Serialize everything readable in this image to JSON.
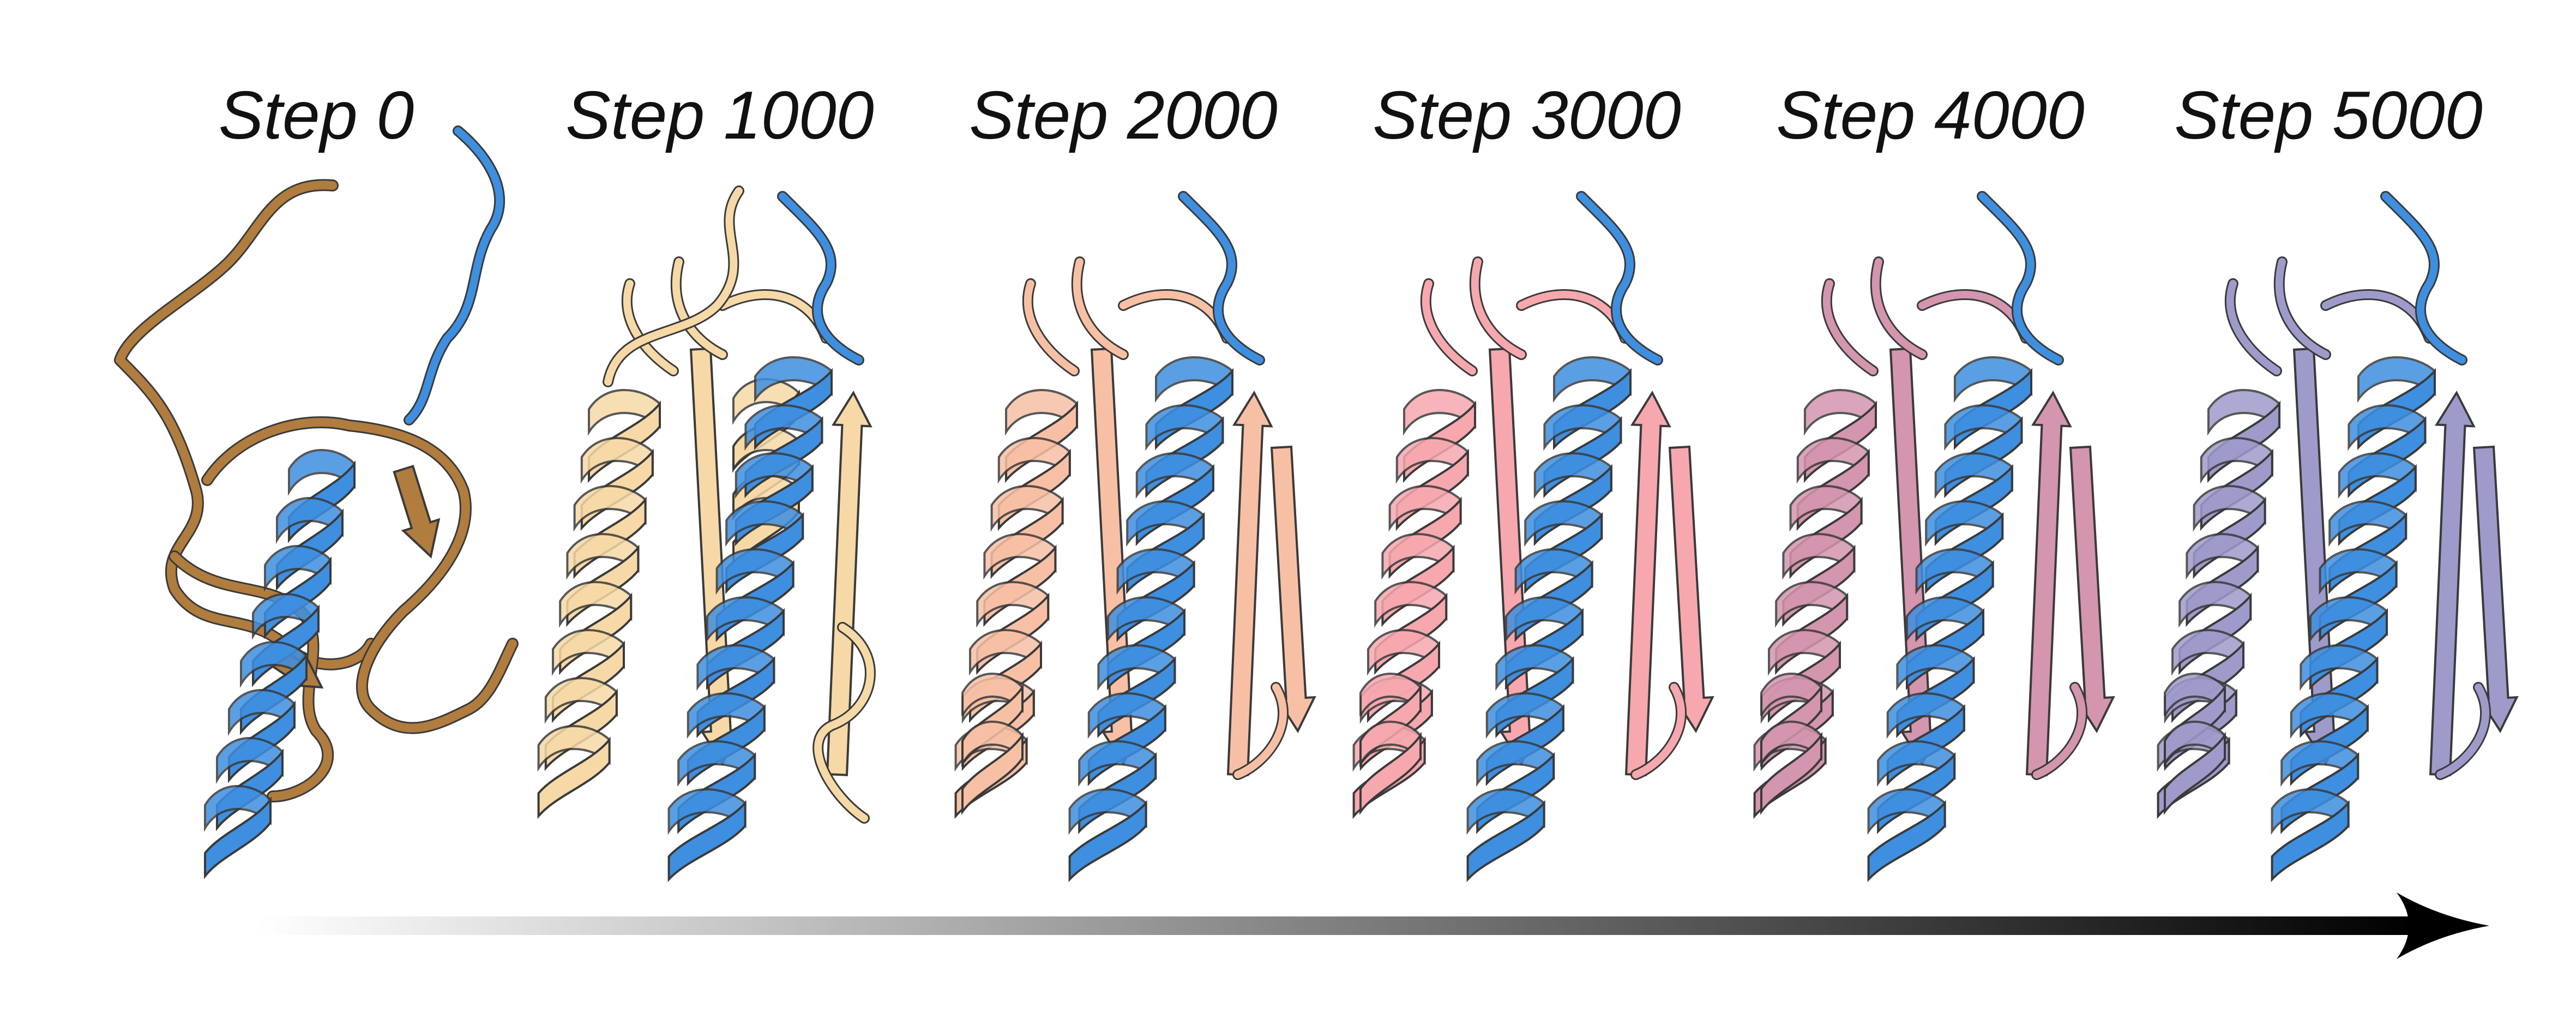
{
  "steps": [
    {
      "label": "Step 0",
      "color": "#B07D3E",
      "style": "unfolded"
    },
    {
      "label": "Step 1000",
      "color": "#F6D9A6",
      "style": "partial"
    },
    {
      "label": "Step 2000",
      "color": "#F7C0A5",
      "style": "folded"
    },
    {
      "label": "Step 3000",
      "color": "#F6A8AE",
      "style": "folded"
    },
    {
      "label": "Step 4000",
      "color": "#D495AE",
      "style": "folded"
    },
    {
      "label": "Step 5000",
      "color": "#9E9BCB",
      "style": "folded"
    }
  ],
  "peptide_color": "#3E8FE0",
  "outline_color": "#3a3a3a",
  "arrow": {
    "gradient_start": "#ffffff",
    "gradient_end": "#000000"
  }
}
